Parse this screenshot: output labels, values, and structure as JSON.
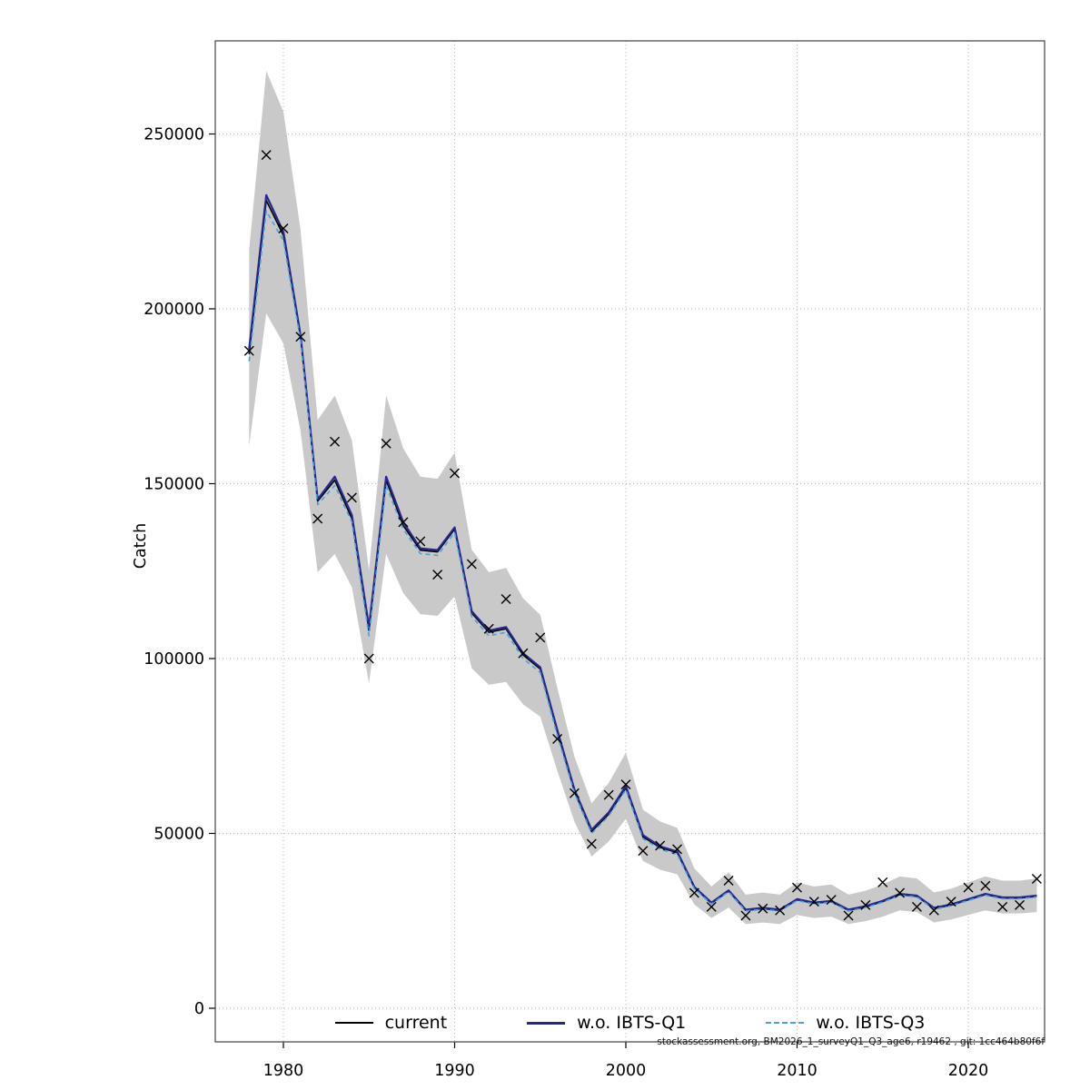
{
  "footer": {
    "text": "stockassessment.org, BM2026_1_surveyQ1_Q3_age6, r19462 , git: 1cc464b80f6f"
  },
  "chart_data": {
    "type": "line",
    "title": "",
    "xlabel": "",
    "ylabel": "Catch",
    "grid": "dotted",
    "legend_position": "bottom",
    "xlim": [
      1976.5,
      2025.5
    ],
    "ylim": [
      0,
      270000
    ],
    "x_ticks": [
      1980,
      1990,
      2000,
      2010,
      2020
    ],
    "y_ticks": [
      0,
      50000,
      100000,
      150000,
      200000,
      250000
    ],
    "x": [
      1978,
      1979,
      1980,
      1981,
      1982,
      1983,
      1984,
      1985,
      1986,
      1987,
      1988,
      1989,
      1990,
      1991,
      1992,
      1993,
      1994,
      1995,
      1996,
      1997,
      1998,
      1999,
      2000,
      2001,
      2002,
      2003,
      2004,
      2005,
      2006,
      2007,
      2008,
      2009,
      2010,
      2011,
      2012,
      2013,
      2014,
      2015,
      2016,
      2017,
      2018,
      2019,
      2020,
      2021,
      2022,
      2023,
      2024
    ],
    "series": [
      {
        "name": "current",
        "color": "#000000",
        "dash": "solid",
        "values": [
          187000,
          231000,
          221000,
          192000,
          145000,
          151000,
          140000,
          108000,
          151000,
          138000,
          131000,
          130500,
          137000,
          113000,
          107500,
          108500,
          101000,
          97000,
          79000,
          62000,
          50500,
          55500,
          63000,
          49000,
          46000,
          44500,
          34500,
          30000,
          33500,
          28000,
          28500,
          28000,
          31000,
          30000,
          30500,
          28000,
          29000,
          30500,
          32500,
          32000,
          28500,
          29500,
          31000,
          32500,
          31500,
          31500,
          32000
        ]
      },
      {
        "name": "w.o. IBTS-Q1",
        "color": "#26268c",
        "dash": "solid",
        "values": [
          188500,
          232500,
          222000,
          192500,
          145500,
          152000,
          141000,
          109000,
          152000,
          139000,
          131500,
          131000,
          137500,
          113500,
          108000,
          109000,
          101500,
          97500,
          79500,
          62500,
          51000,
          56000,
          63500,
          49500,
          46300,
          44800,
          34700,
          30200,
          33700,
          28200,
          28700,
          28200,
          31200,
          30200,
          30700,
          28200,
          29200,
          30700,
          32700,
          32200,
          28700,
          29700,
          31200,
          32700,
          31700,
          31700,
          32200
        ]
      },
      {
        "name": "w.o. IBTS-Q3",
        "color": "#4aa2d9",
        "dash": "dashed",
        "values": [
          185000,
          228000,
          219500,
          191000,
          144000,
          149500,
          139000,
          106500,
          149500,
          137000,
          130000,
          129500,
          136000,
          112000,
          106500,
          107500,
          100000,
          96000,
          78000,
          61500,
          50000,
          55000,
          62500,
          48500,
          45500,
          44000,
          34200,
          29800,
          33300,
          27800,
          28300,
          27800,
          30800,
          29800,
          30300,
          27800,
          28800,
          30300,
          32300,
          31800,
          28300,
          29300,
          30800,
          32300,
          31300,
          31300,
          31800
        ]
      }
    ],
    "observations": {
      "marker": "x",
      "color": "#000000",
      "values": [
        188000,
        244000,
        223000,
        192000,
        140000,
        162000,
        146000,
        100000,
        161500,
        139000,
        133500,
        124000,
        153000,
        127000,
        108500,
        117000,
        101500,
        106000,
        77000,
        61500,
        47000,
        61000,
        64000,
        45000,
        46500,
        45500,
        33000,
        29000,
        36500,
        26500,
        28500,
        28000,
        34500,
        30500,
        31000,
        26500,
        29500,
        36000,
        33000,
        29000,
        28000,
        30500,
        34500,
        35000,
        29000,
        29500,
        37000
      ]
    },
    "band": {
      "color": "#c9c9c9",
      "lower": [
        160800,
        198700,
        190100,
        165100,
        124700,
        129900,
        120400,
        92900,
        129900,
        118700,
        112700,
        112200,
        117800,
        97200,
        92500,
        93300,
        86900,
        83400,
        67900,
        53300,
        43400,
        47700,
        54200,
        42100,
        39600,
        38300,
        29700,
        25800,
        28800,
        24100,
        24500,
        24100,
        26700,
        25800,
        26200,
        24100,
        24900,
        26200,
        28000,
        27500,
        24500,
        25400,
        26700,
        28000,
        27100,
        27100,
        27500
      ],
      "upper": [
        216900,
        268000,
        256400,
        222700,
        168200,
        175200,
        162400,
        125300,
        175200,
        160100,
        152000,
        151400,
        158900,
        131100,
        124700,
        125900,
        117200,
        112500,
        91600,
        71900,
        58600,
        64400,
        73100,
        56800,
        53400,
        51600,
        40000,
        34800,
        38900,
        32500,
        33100,
        32500,
        36000,
        34800,
        35400,
        32500,
        33600,
        35400,
        37700,
        37100,
        33100,
        34200,
        36000,
        37700,
        36500,
        36500,
        37100
      ]
    }
  }
}
